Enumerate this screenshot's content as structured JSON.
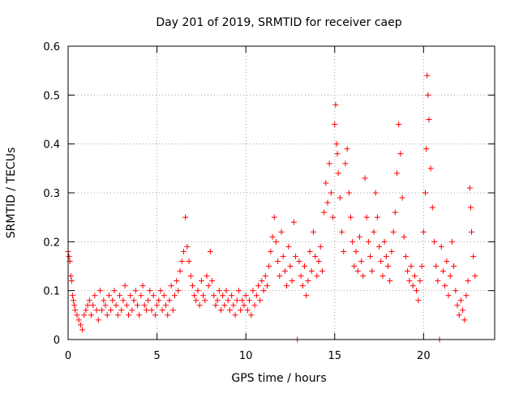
{
  "chart_data": {
    "type": "scatter",
    "title": "Day 201 of 2019, SRMTID for receiver caep",
    "xlabel": "GPS time / hours",
    "ylabel": "SRMTID / TECUs",
    "xlim": [
      0,
      24
    ],
    "ylim": [
      0,
      0.6
    ],
    "grid": true,
    "marker": "+",
    "color": "#ff0000",
    "x_ticks": [
      0,
      5,
      10,
      15,
      20
    ],
    "x_tick_labels": [
      "0",
      "5",
      "10",
      "15",
      "20"
    ],
    "y_ticks": [
      0,
      0.1,
      0.2,
      0.3,
      0.4,
      0.5,
      0.6
    ],
    "y_tick_labels": [
      "0",
      "0.1",
      "0.2",
      "0.3",
      "0.4",
      "0.5",
      "0.6"
    ],
    "series": [
      {
        "name": "SRMTID",
        "points": [
          [
            0.0,
            0.18
          ],
          [
            0.05,
            0.17
          ],
          [
            0.1,
            0.16
          ],
          [
            0.15,
            0.13
          ],
          [
            0.2,
            0.12
          ],
          [
            0.25,
            0.09
          ],
          [
            0.3,
            0.08
          ],
          [
            0.35,
            0.07
          ],
          [
            0.4,
            0.06
          ],
          [
            0.5,
            0.05
          ],
          [
            0.6,
            0.04
          ],
          [
            0.7,
            0.03
          ],
          [
            0.8,
            0.02
          ],
          [
            0.9,
            0.05
          ],
          [
            1.0,
            0.06
          ],
          [
            1.1,
            0.07
          ],
          [
            1.2,
            0.08
          ],
          [
            1.3,
            0.05
          ],
          [
            1.4,
            0.07
          ],
          [
            1.5,
            0.09
          ],
          [
            1.6,
            0.06
          ],
          [
            1.7,
            0.04
          ],
          [
            1.8,
            0.1
          ],
          [
            1.9,
            0.06
          ],
          [
            2.0,
            0.08
          ],
          [
            2.1,
            0.07
          ],
          [
            2.2,
            0.05
          ],
          [
            2.3,
            0.09
          ],
          [
            2.4,
            0.06
          ],
          [
            2.5,
            0.08
          ],
          [
            2.6,
            0.1
          ],
          [
            2.7,
            0.07
          ],
          [
            2.8,
            0.05
          ],
          [
            2.9,
            0.09
          ],
          [
            3.0,
            0.06
          ],
          [
            3.1,
            0.08
          ],
          [
            3.2,
            0.11
          ],
          [
            3.3,
            0.07
          ],
          [
            3.4,
            0.05
          ],
          [
            3.5,
            0.09
          ],
          [
            3.6,
            0.06
          ],
          [
            3.7,
            0.08
          ],
          [
            3.8,
            0.1
          ],
          [
            3.9,
            0.07
          ],
          [
            4.0,
            0.05
          ],
          [
            4.1,
            0.09
          ],
          [
            4.2,
            0.11
          ],
          [
            4.3,
            0.07
          ],
          [
            4.4,
            0.06
          ],
          [
            4.5,
            0.08
          ],
          [
            4.6,
            0.1
          ],
          [
            4.7,
            0.06
          ],
          [
            4.8,
            0.09
          ],
          [
            4.9,
            0.05
          ],
          [
            5.0,
            0.07
          ],
          [
            5.1,
            0.08
          ],
          [
            5.2,
            0.1
          ],
          [
            5.3,
            0.06
          ],
          [
            5.4,
            0.09
          ],
          [
            5.5,
            0.07
          ],
          [
            5.6,
            0.05
          ],
          [
            5.7,
            0.08
          ],
          [
            5.8,
            0.11
          ],
          [
            5.9,
            0.06
          ],
          [
            6.0,
            0.09
          ],
          [
            6.1,
            0.12
          ],
          [
            6.2,
            0.1
          ],
          [
            6.3,
            0.14
          ],
          [
            6.4,
            0.16
          ],
          [
            6.5,
            0.18
          ],
          [
            6.6,
            0.25
          ],
          [
            6.7,
            0.19
          ],
          [
            6.8,
            0.16
          ],
          [
            6.9,
            0.13
          ],
          [
            7.0,
            0.11
          ],
          [
            7.1,
            0.09
          ],
          [
            7.2,
            0.08
          ],
          [
            7.3,
            0.1
          ],
          [
            7.4,
            0.07
          ],
          [
            7.5,
            0.12
          ],
          [
            7.6,
            0.09
          ],
          [
            7.7,
            0.08
          ],
          [
            7.8,
            0.13
          ],
          [
            7.9,
            0.11
          ],
          [
            8.0,
            0.18
          ],
          [
            8.1,
            0.12
          ],
          [
            8.2,
            0.09
          ],
          [
            8.3,
            0.07
          ],
          [
            8.4,
            0.08
          ],
          [
            8.5,
            0.1
          ],
          [
            8.6,
            0.06
          ],
          [
            8.7,
            0.09
          ],
          [
            8.8,
            0.07
          ],
          [
            8.9,
            0.1
          ],
          [
            9.0,
            0.08
          ],
          [
            9.1,
            0.06
          ],
          [
            9.2,
            0.09
          ],
          [
            9.3,
            0.07
          ],
          [
            9.4,
            0.05
          ],
          [
            9.5,
            0.08
          ],
          [
            9.6,
            0.1
          ],
          [
            9.7,
            0.06
          ],
          [
            9.8,
            0.08
          ],
          [
            9.9,
            0.07
          ],
          [
            10.0,
            0.09
          ],
          [
            10.1,
            0.06
          ],
          [
            10.2,
            0.08
          ],
          [
            10.3,
            0.05
          ],
          [
            10.4,
            0.1
          ],
          [
            10.5,
            0.07
          ],
          [
            10.6,
            0.09
          ],
          [
            10.7,
            0.11
          ],
          [
            10.8,
            0.08
          ],
          [
            10.9,
            0.12
          ],
          [
            11.0,
            0.1
          ],
          [
            11.1,
            0.13
          ],
          [
            11.2,
            0.11
          ],
          [
            11.3,
            0.15
          ],
          [
            11.4,
            0.18
          ],
          [
            11.5,
            0.21
          ],
          [
            11.6,
            0.25
          ],
          [
            11.7,
            0.2
          ],
          [
            11.8,
            0.16
          ],
          [
            11.9,
            0.13
          ],
          [
            12.0,
            0.22
          ],
          [
            12.1,
            0.17
          ],
          [
            12.2,
            0.14
          ],
          [
            12.3,
            0.11
          ],
          [
            12.4,
            0.19
          ],
          [
            12.5,
            0.15
          ],
          [
            12.6,
            0.12
          ],
          [
            12.7,
            0.24
          ],
          [
            12.8,
            0.17
          ],
          [
            12.9,
            0.0
          ],
          [
            13.0,
            0.16
          ],
          [
            13.1,
            0.13
          ],
          [
            13.2,
            0.11
          ],
          [
            13.3,
            0.15
          ],
          [
            13.4,
            0.09
          ],
          [
            13.5,
            0.12
          ],
          [
            13.6,
            0.18
          ],
          [
            13.7,
            0.14
          ],
          [
            13.8,
            0.22
          ],
          [
            13.9,
            0.17
          ],
          [
            14.0,
            0.13
          ],
          [
            14.1,
            0.16
          ],
          [
            14.2,
            0.19
          ],
          [
            14.3,
            0.14
          ],
          [
            14.4,
            0.26
          ],
          [
            14.5,
            0.32
          ],
          [
            14.6,
            0.28
          ],
          [
            14.7,
            0.36
          ],
          [
            14.8,
            0.3
          ],
          [
            14.9,
            0.25
          ],
          [
            15.0,
            0.44
          ],
          [
            15.05,
            0.48
          ],
          [
            15.1,
            0.4
          ],
          [
            15.15,
            0.38
          ],
          [
            15.2,
            0.34
          ],
          [
            15.3,
            0.29
          ],
          [
            15.4,
            0.22
          ],
          [
            15.5,
            0.18
          ],
          [
            15.6,
            0.36
          ],
          [
            15.7,
            0.39
          ],
          [
            15.8,
            0.3
          ],
          [
            15.9,
            0.25
          ],
          [
            16.0,
            0.2
          ],
          [
            16.1,
            0.15
          ],
          [
            16.2,
            0.18
          ],
          [
            16.3,
            0.14
          ],
          [
            16.4,
            0.21
          ],
          [
            16.5,
            0.16
          ],
          [
            16.6,
            0.13
          ],
          [
            16.7,
            0.33
          ],
          [
            16.8,
            0.25
          ],
          [
            16.9,
            0.2
          ],
          [
            17.0,
            0.17
          ],
          [
            17.1,
            0.14
          ],
          [
            17.2,
            0.22
          ],
          [
            17.3,
            0.3
          ],
          [
            17.4,
            0.25
          ],
          [
            17.5,
            0.19
          ],
          [
            17.6,
            0.16
          ],
          [
            17.7,
            0.13
          ],
          [
            17.8,
            0.2
          ],
          [
            17.9,
            0.17
          ],
          [
            18.0,
            0.15
          ],
          [
            18.1,
            0.12
          ],
          [
            18.2,
            0.18
          ],
          [
            18.3,
            0.22
          ],
          [
            18.4,
            0.26
          ],
          [
            18.5,
            0.34
          ],
          [
            18.6,
            0.44
          ],
          [
            18.7,
            0.38
          ],
          [
            18.8,
            0.29
          ],
          [
            18.9,
            0.21
          ],
          [
            19.0,
            0.17
          ],
          [
            19.1,
            0.14
          ],
          [
            19.2,
            0.12
          ],
          [
            19.3,
            0.15
          ],
          [
            19.4,
            0.11
          ],
          [
            19.5,
            0.13
          ],
          [
            19.6,
            0.1
          ],
          [
            19.7,
            0.08
          ],
          [
            19.8,
            0.12
          ],
          [
            19.9,
            0.15
          ],
          [
            20.0,
            0.22
          ],
          [
            20.1,
            0.3
          ],
          [
            20.15,
            0.39
          ],
          [
            20.2,
            0.54
          ],
          [
            20.25,
            0.5
          ],
          [
            20.3,
            0.45
          ],
          [
            20.4,
            0.35
          ],
          [
            20.5,
            0.27
          ],
          [
            20.6,
            0.2
          ],
          [
            20.7,
            0.15
          ],
          [
            20.8,
            0.12
          ],
          [
            20.9,
            0.0
          ],
          [
            21.0,
            0.19
          ],
          [
            21.1,
            0.14
          ],
          [
            21.2,
            0.11
          ],
          [
            21.3,
            0.16
          ],
          [
            21.4,
            0.09
          ],
          [
            21.5,
            0.13
          ],
          [
            21.6,
            0.2
          ],
          [
            21.7,
            0.15
          ],
          [
            21.8,
            0.1
          ],
          [
            21.9,
            0.07
          ],
          [
            22.0,
            0.05
          ],
          [
            22.1,
            0.08
          ],
          [
            22.2,
            0.06
          ],
          [
            22.3,
            0.04
          ],
          [
            22.4,
            0.09
          ],
          [
            22.5,
            0.12
          ],
          [
            22.6,
            0.31
          ],
          [
            22.65,
            0.27
          ],
          [
            22.7,
            0.22
          ],
          [
            22.8,
            0.17
          ],
          [
            22.9,
            0.13
          ]
        ]
      }
    ]
  }
}
